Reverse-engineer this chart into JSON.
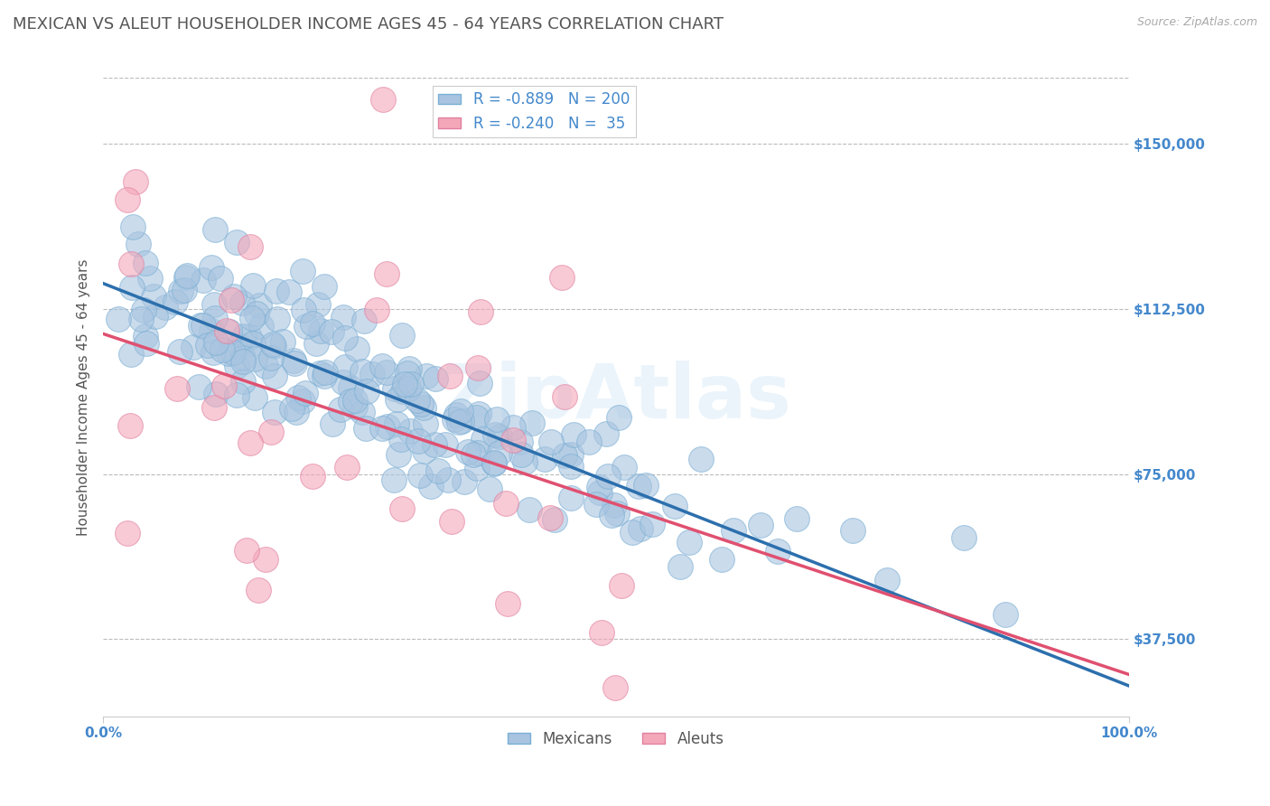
{
  "title": "MEXICAN VS ALEUT HOUSEHOLDER INCOME AGES 45 - 64 YEARS CORRELATION CHART",
  "source": "Source: ZipAtlas.com",
  "ylabel": "Householder Income Ages 45 - 64 years",
  "xlim": [
    0,
    1
  ],
  "ylim": [
    20000,
    165000
  ],
  "yticks": [
    37500,
    75000,
    112500,
    150000
  ],
  "ytick_labels": [
    "$37,500",
    "$75,000",
    "$112,500",
    "$150,000"
  ],
  "xtick_labels": [
    "0.0%",
    "100.0%"
  ],
  "legend_R_mexican": "-0.889",
  "legend_N_mexican": "200",
  "legend_R_aleut": "-0.240",
  "legend_N_aleut": "35",
  "mexican_color": "#a8c4e0",
  "aleut_color": "#f4a7b9",
  "line_mexican_color": "#2c6fad",
  "line_aleut_color": "#e05070",
  "background_color": "#ffffff",
  "grid_color": "#bbbbbb",
  "title_color": "#555555",
  "watermark": "ZipAtlas",
  "mexican_n": 200,
  "aleut_n": 35,
  "mexican_r": -0.889,
  "aleut_r": -0.24,
  "title_fontsize": 13,
  "axis_label_fontsize": 11,
  "tick_fontsize": 11,
  "legend_fontsize": 12,
  "tick_color": "#4488cc"
}
